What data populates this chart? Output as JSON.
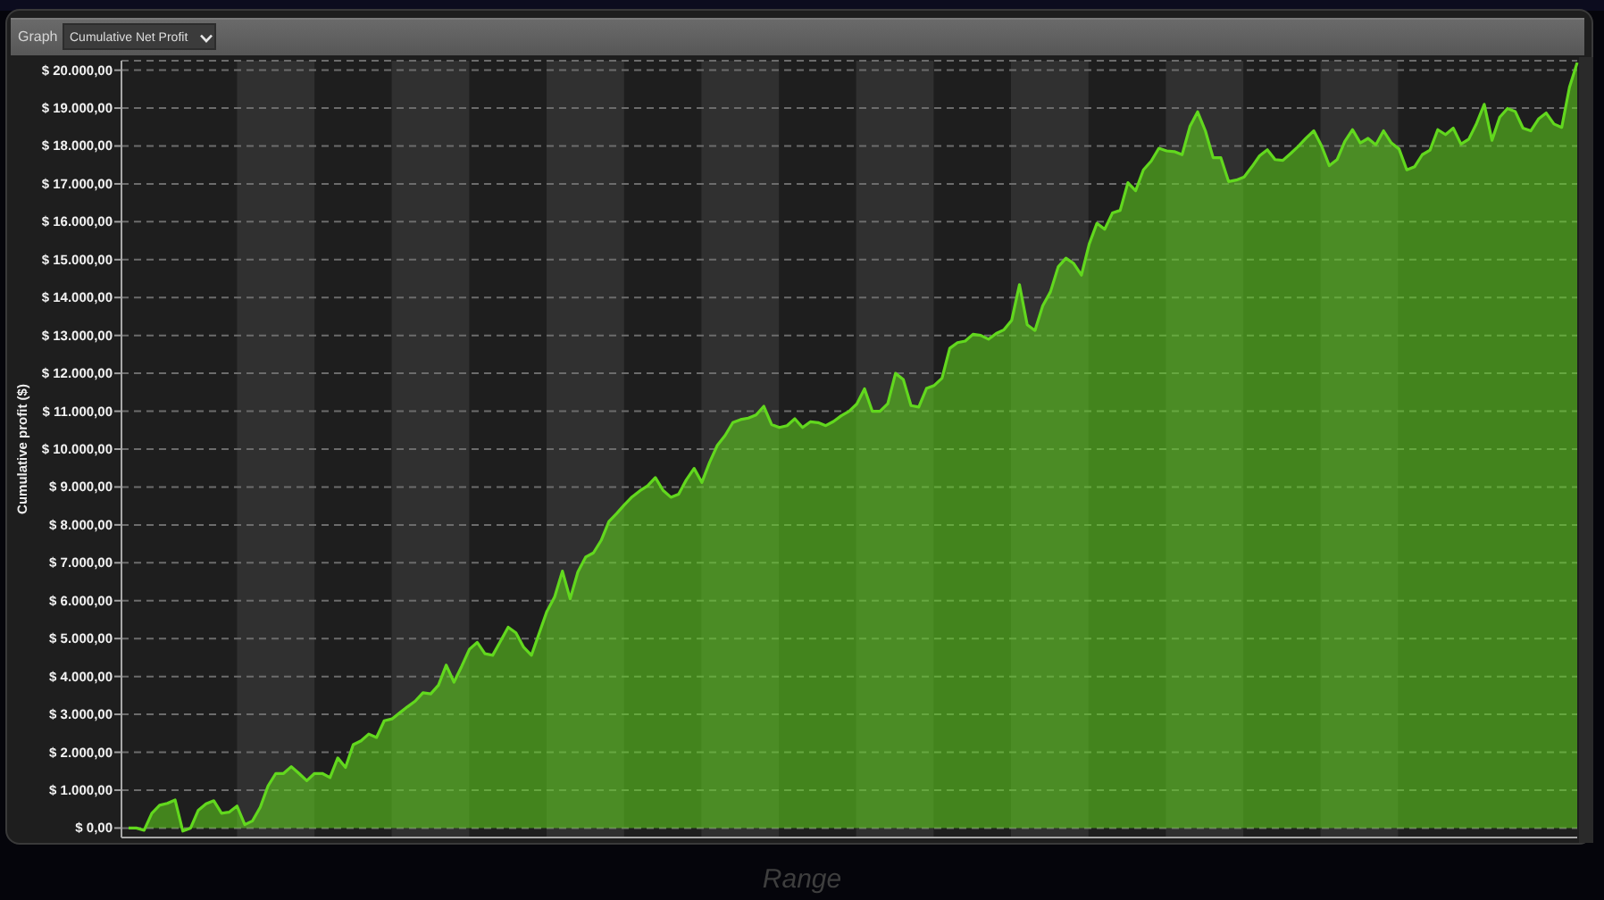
{
  "chart_data": {
    "type": "area",
    "title": "Cumulative Net Profit",
    "ylabel": "Cumulative profit ($)",
    "annotations": [
      "Graph",
      "Range"
    ],
    "categories": [
      null,
      null,
      null,
      null,
      null,
      null,
      null,
      null,
      null,
      null,
      null,
      null,
      null,
      null,
      null,
      null,
      null,
      null,
      null,
      null,
      null,
      null,
      null,
      null,
      null,
      null,
      null,
      null,
      null,
      null,
      null,
      null,
      null,
      null,
      null,
      null,
      null,
      null,
      null,
      null,
      null,
      null,
      null,
      null,
      null,
      null,
      null,
      null,
      null,
      null,
      null,
      null,
      null,
      null,
      null,
      null,
      null,
      null,
      null,
      null,
      null,
      null,
      null,
      null,
      null,
      null,
      null,
      null,
      null,
      null,
      null,
      null,
      null,
      null,
      null,
      null,
      null,
      null,
      null,
      null,
      null,
      null,
      null,
      null,
      null,
      null,
      null,
      null,
      null,
      null,
      null,
      null,
      null,
      null,
      null,
      null,
      null,
      null,
      null,
      null,
      null,
      null,
      null,
      null,
      null,
      null,
      null,
      null,
      null,
      null,
      null,
      null,
      null,
      null,
      null,
      null,
      null,
      null,
      null,
      null,
      null,
      null,
      null,
      null,
      null,
      null,
      null,
      null,
      null,
      null,
      null,
      null,
      null,
      null,
      null,
      null,
      null,
      null,
      null,
      null,
      null,
      null,
      null,
      null,
      null,
      null,
      null,
      null,
      null,
      null,
      null,
      null,
      null,
      null,
      null,
      null,
      null,
      null,
      null,
      null,
      null,
      null,
      null,
      null,
      null,
      null,
      null,
      null,
      null,
      null,
      null,
      null,
      null,
      null,
      null,
      null,
      null,
      null,
      null,
      null,
      null,
      null,
      null,
      null,
      null,
      null,
      null,
      null
    ],
    "values": [
      0,
      0,
      -60,
      390,
      600,
      650,
      740,
      -80,
      0,
      470,
      640,
      720,
      390,
      420,
      580,
      90,
      190,
      550,
      1110,
      1440,
      1440,
      1620,
      1440,
      1250,
      1440,
      1440,
      1330,
      1850,
      1600,
      2200,
      2300,
      2480,
      2390,
      2830,
      2880,
      3040,
      3200,
      3350,
      3570,
      3540,
      3770,
      4300,
      3850,
      4270,
      4720,
      4900,
      4600,
      4560,
      4930,
      5300,
      5150,
      4770,
      4560,
      5140,
      5720,
      6100,
      6780,
      6050,
      6760,
      7150,
      7260,
      7590,
      8090,
      8300,
      8530,
      8740,
      8900,
      9030,
      9250,
      8910,
      8730,
      8810,
      9190,
      9490,
      9120,
      9650,
      10100,
      10360,
      10700,
      10780,
      10820,
      10900,
      11130,
      10650,
      10570,
      10620,
      10800,
      10570,
      10720,
      10700,
      10620,
      10730,
      10880,
      11000,
      11190,
      11590,
      11000,
      11000,
      11200,
      12000,
      11840,
      11150,
      11110,
      11600,
      11680,
      11870,
      12660,
      12810,
      12850,
      13030,
      13000,
      12900,
      13050,
      13150,
      13400,
      14340,
      13280,
      13130,
      13780,
      14150,
      14810,
      15040,
      14900,
      14590,
      15410,
      15960,
      15800,
      16230,
      16300,
      17030,
      16820,
      17370,
      17600,
      17940,
      17870,
      17850,
      17770,
      18510,
      18900,
      18400,
      17690,
      17690,
      17060,
      17100,
      17180,
      17450,
      17740,
      17900,
      17640,
      17620,
      17800,
      17990,
      18210,
      18400,
      18000,
      17480,
      17640,
      18120,
      18430,
      18080,
      18200,
      18030,
      18400,
      18080,
      17920,
      17370,
      17450,
      17770,
      17890,
      18430,
      18300,
      18470,
      18050,
      18180,
      18590,
      19100,
      18150,
      18760,
      18990,
      18910,
      18470,
      18400,
      18710,
      18870,
      18580,
      18490,
      19550,
      20200
    ],
    "color": "#62d81e",
    "ylim": [
      -250,
      20250
    ],
    "yticks": [
      {
        "value": 0,
        "label": "$ 0,00"
      },
      {
        "value": 1000,
        "label": "$ 1.000,00"
      },
      {
        "value": 2000,
        "label": "$ 2.000,00"
      },
      {
        "value": 3000,
        "label": "$ 3.000,00"
      },
      {
        "value": 4000,
        "label": "$ 4.000,00"
      },
      {
        "value": 5000,
        "label": "$ 5.000,00"
      },
      {
        "value": 6000,
        "label": "$ 6.000,00"
      },
      {
        "value": 7000,
        "label": "$ 7.000,00"
      },
      {
        "value": 8000,
        "label": "$ 8.000,00"
      },
      {
        "value": 9000,
        "label": "$ 9.000,00"
      },
      {
        "value": 10000,
        "label": "$ 10.000,00"
      },
      {
        "value": 11000,
        "label": "$ 11.000,00"
      },
      {
        "value": 12000,
        "label": "$ 12.000,00"
      },
      {
        "value": 13000,
        "label": "$ 13.000,00"
      },
      {
        "value": 14000,
        "label": "$ 14.000,00"
      },
      {
        "value": 15000,
        "label": "$ 15.000,00"
      },
      {
        "value": 16000,
        "label": "$ 16.000,00"
      },
      {
        "value": 17000,
        "label": "$ 17.000,00"
      },
      {
        "value": 18000,
        "label": "$ 18.000,00"
      },
      {
        "value": 19000,
        "label": "$ 19.000,00"
      },
      {
        "value": 20000,
        "label": "$ 20.000,00"
      }
    ],
    "tick_labels": "y",
    "grid": "y"
  }
}
